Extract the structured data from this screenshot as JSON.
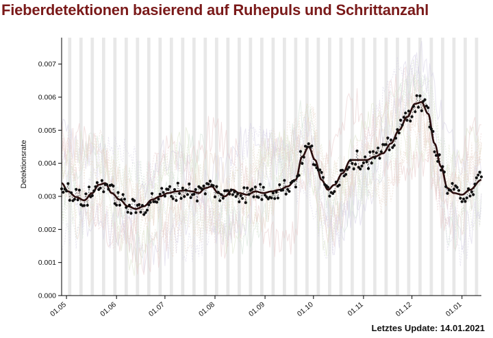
{
  "header": {
    "title": "Fieberdetektionen basierend auf Ruhepuls und Schrittanzahl"
  },
  "footer": {
    "update_text": "Letztes Update: 14.01.2021"
  },
  "colors": {
    "title": "#7a1a1a",
    "trend_line": "#2b0d0d",
    "points": "#111111",
    "weekend_bands": "#e4e4e4",
    "background_lines": [
      "#e7c9c9",
      "#dbe3c8",
      "#d6cfe6",
      "#e8d4c4",
      "#cfe0d4"
    ]
  },
  "chart_data": {
    "type": "line",
    "title": "Fieberdetektionen basierend auf Ruhepuls und Schrittanzahl",
    "xlabel": "",
    "ylabel": "Detektionsrate",
    "x_range": [
      "2020-04-28",
      "2021-01-13"
    ],
    "ylim": [
      0,
      0.0078
    ],
    "y_ticks": [
      "0.000",
      "0.001",
      "0.002",
      "0.003",
      "0.004",
      "0.005",
      "0.006",
      "0.007"
    ],
    "x_ticks": [
      {
        "label": "01.05",
        "date": "2020-05-01"
      },
      {
        "label": "01.06",
        "date": "2020-06-01"
      },
      {
        "label": "01.07",
        "date": "2020-07-01"
      },
      {
        "label": "01.08",
        "date": "2020-08-01"
      },
      {
        "label": "01.09",
        "date": "2020-09-01"
      },
      {
        "label": "01.10",
        "date": "2020-10-01"
      },
      {
        "label": "01.11",
        "date": "2020-11-01"
      },
      {
        "label": "01.12",
        "date": "2020-12-01"
      },
      {
        "label": "01.01",
        "date": "2021-01-01"
      }
    ],
    "grid": false,
    "weekend_shading": true,
    "series": [
      {
        "kind": "smoothed-trend",
        "points": [
          [
            "2020-04-28",
            0.0034
          ],
          [
            "2020-05-02",
            0.00315
          ],
          [
            "2020-05-07",
            0.00298
          ],
          [
            "2020-05-12",
            0.00288
          ],
          [
            "2020-05-17",
            0.0031
          ],
          [
            "2020-05-21",
            0.00335
          ],
          [
            "2020-05-25",
            0.0034
          ],
          [
            "2020-05-29",
            0.0031
          ],
          [
            "2020-06-03",
            0.0029
          ],
          [
            "2020-06-08",
            0.0027
          ],
          [
            "2020-06-13",
            0.00262
          ],
          [
            "2020-06-18",
            0.0027
          ],
          [
            "2020-06-23",
            0.0029
          ],
          [
            "2020-06-28",
            0.003
          ],
          [
            "2020-07-03",
            0.0031
          ],
          [
            "2020-07-08",
            0.00315
          ],
          [
            "2020-07-13",
            0.00318
          ],
          [
            "2020-07-18",
            0.00315
          ],
          [
            "2020-07-22",
            0.0031
          ],
          [
            "2020-07-26",
            0.00325
          ],
          [
            "2020-07-30",
            0.0033
          ],
          [
            "2020-08-03",
            0.0031
          ],
          [
            "2020-08-07",
            0.003
          ],
          [
            "2020-08-12",
            0.0032
          ],
          [
            "2020-08-16",
            0.0031
          ],
          [
            "2020-08-21",
            0.00305
          ],
          [
            "2020-08-26",
            0.00315
          ],
          [
            "2020-08-31",
            0.0031
          ],
          [
            "2020-09-05",
            0.00315
          ],
          [
            "2020-09-10",
            0.0032
          ],
          [
            "2020-09-15",
            0.0033
          ],
          [
            "2020-09-20",
            0.0035
          ],
          [
            "2020-09-24",
            0.0042
          ],
          [
            "2020-09-28",
            0.0045
          ],
          [
            "2020-10-02",
            0.0041
          ],
          [
            "2020-10-06",
            0.0035
          ],
          [
            "2020-10-10",
            0.0032
          ],
          [
            "2020-10-14",
            0.00335
          ],
          [
            "2020-10-19",
            0.0037
          ],
          [
            "2020-10-24",
            0.0041
          ],
          [
            "2020-10-29",
            0.0041
          ],
          [
            "2020-11-03",
            0.0041
          ],
          [
            "2020-11-08",
            0.0042
          ],
          [
            "2020-11-13",
            0.0043
          ],
          [
            "2020-11-18",
            0.0046
          ],
          [
            "2020-11-23",
            0.005
          ],
          [
            "2020-11-28",
            0.0054
          ],
          [
            "2020-12-03",
            0.0058
          ],
          [
            "2020-12-07",
            0.00585
          ],
          [
            "2020-12-11",
            0.0055
          ],
          [
            "2020-12-15",
            0.0046
          ],
          [
            "2020-12-19",
            0.0039
          ],
          [
            "2020-12-23",
            0.00325
          ],
          [
            "2020-12-27",
            0.0031
          ],
          [
            "2021-01-01",
            0.00305
          ],
          [
            "2021-01-06",
            0.0032
          ],
          [
            "2021-01-13",
            0.0035
          ]
        ]
      }
    ],
    "daily_points_note": "Scatter of daily values around the trend"
  }
}
